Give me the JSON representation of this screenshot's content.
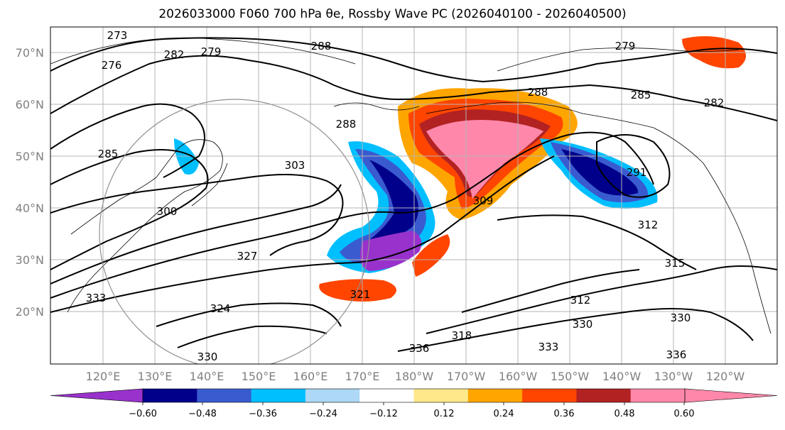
{
  "title": "2026033000 F060 700 hPa θe, Rossby Wave PC (2026040100 - 2026040500)",
  "colors": {
    "land_border": "#000000",
    "grid": "#b4b4b4",
    "contour": "#000000"
  },
  "map": {
    "lat_labels": [
      "70°N",
      "60°N",
      "50°N",
      "40°N",
      "30°N",
      "20°N"
    ],
    "lon_labels": [
      "120°E",
      "130°E",
      "140°E",
      "150°E",
      "160°E",
      "170°E",
      "180°W",
      "170°W",
      "160°W",
      "150°W",
      "140°W",
      "130°W",
      "120°W"
    ],
    "contour_labels": [
      "273",
      "276",
      "282",
      "288",
      "279",
      "285",
      "282",
      "288",
      "288",
      "303",
      "291",
      "285",
      "279",
      "300",
      "309",
      "312",
      "327",
      "315",
      "321",
      "333",
      "324",
      "330",
      "330",
      "336",
      "318",
      "312",
      "330",
      "333",
      "336"
    ],
    "shading_blobs": [
      {
        "level": 0.48,
        "color": "#b22222"
      },
      {
        "level": 0.6,
        "color": "#ff88aa"
      },
      {
        "level": -0.48,
        "color": "#00008b"
      },
      {
        "level": -0.6,
        "color": "#9932cc"
      }
    ]
  },
  "colorbar": {
    "ticks": [
      "−0.60",
      "−0.48",
      "−0.36",
      "−0.24",
      "−0.12",
      "0.12",
      "0.24",
      "0.36",
      "0.48",
      "0.60"
    ],
    "colors": [
      "#9932cc",
      "#00008b",
      "#3a5bd0",
      "#00bfff",
      "#add8f6",
      "#ffffff",
      "#ffe88a",
      "#ffa500",
      "#ff4500",
      "#b22222",
      "#ff88aa",
      "#ff88aa"
    ]
  }
}
